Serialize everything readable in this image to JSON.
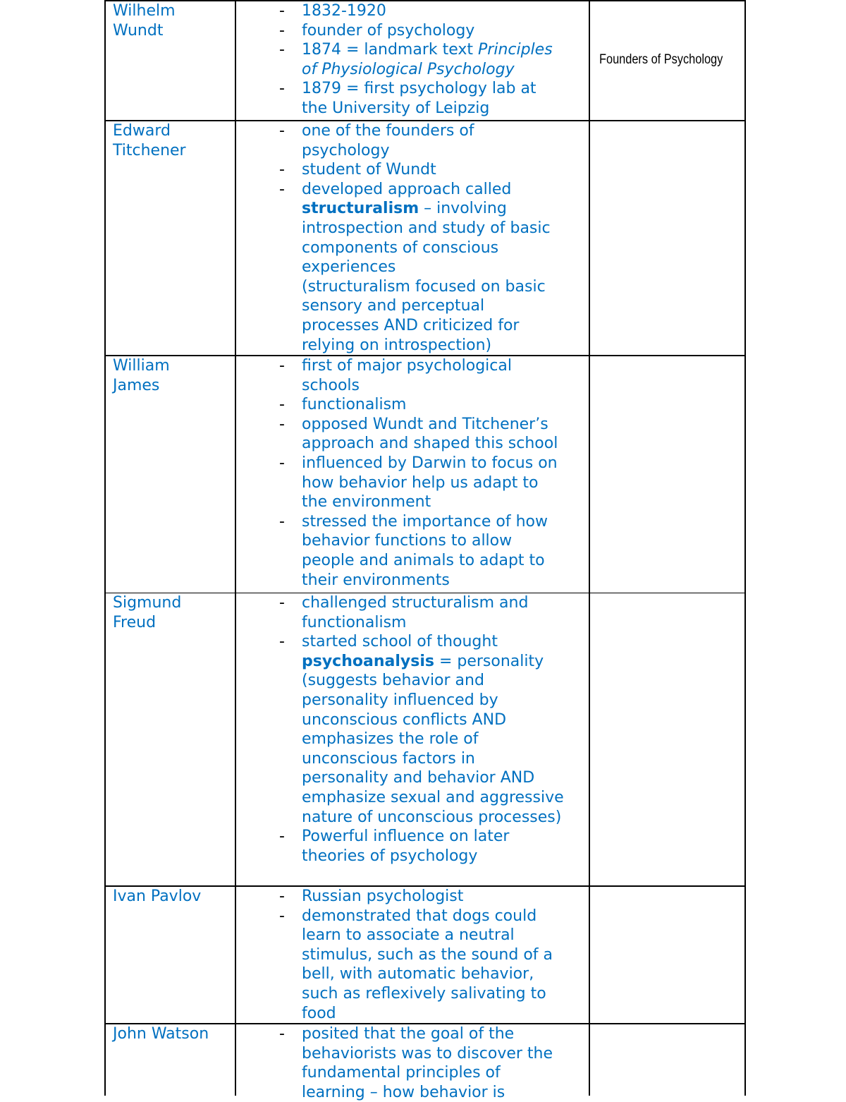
{
  "document": {
    "title": "Founders of Psychology",
    "text_color": "#0070c0",
    "rows": [
      {
        "name": [
          "Wilhelm",
          "Wundt"
        ],
        "items": [
          [
            [
              {
                "t": "1832-1920"
              }
            ]
          ],
          [
            [
              {
                "t": "founder of psychology"
              }
            ]
          ],
          [
            [
              {
                "t": "1874 = landmark text "
              },
              {
                "t": "Principles",
                "i": true
              }
            ],
            [
              {
                "t": "of Physiological Psychology",
                "i": true
              }
            ]
          ],
          [
            [
              {
                "t": "1879 = first psychology lab at"
              }
            ],
            [
              {
                "t": "the University of Leipzig"
              }
            ]
          ]
        ]
      },
      {
        "name": [
          "Edward",
          "Titchener"
        ],
        "items": [
          [
            [
              {
                "t": "one of the founders of"
              }
            ],
            [
              {
                "t": "psychology"
              }
            ]
          ],
          [
            [
              {
                "t": "student of Wundt"
              }
            ]
          ],
          [
            [
              {
                "t": "developed approach called"
              }
            ],
            [
              {
                "t": "structuralism",
                "b": true
              },
              {
                "t": " – involving"
              }
            ],
            [
              {
                "t": "introspection and study of basic"
              }
            ],
            [
              {
                "t": "components of conscious"
              }
            ],
            [
              {
                "t": "experiences"
              }
            ],
            [
              {
                "t": "(structuralism focused on basic"
              }
            ],
            [
              {
                "t": "sensory and perceptual"
              }
            ],
            [
              {
                "t": "processes AND criticized for"
              }
            ],
            [
              {
                "t": "relying on introspection)"
              }
            ]
          ]
        ]
      },
      {
        "name": [
          "William",
          "James"
        ],
        "items": [
          [
            [
              {
                "t": "first of major psychological"
              }
            ],
            [
              {
                "t": "schools"
              }
            ]
          ],
          [
            [
              {
                "t": "functionalism"
              }
            ]
          ],
          [
            [
              {
                "t": "opposed Wundt and Titchener’s"
              }
            ],
            [
              {
                "t": "approach and shaped this school"
              }
            ]
          ],
          [
            [
              {
                "t": "influenced by Darwin to focus on"
              }
            ],
            [
              {
                "t": "how behavior help us adapt to"
              }
            ],
            [
              {
                "t": "the environment"
              }
            ]
          ],
          [
            [
              {
                "t": "stressed the importance of how"
              }
            ],
            [
              {
                "t": "behavior functions to allow"
              }
            ],
            [
              {
                "t": "people and animals to adapt to"
              }
            ],
            [
              {
                "t": "their environments"
              }
            ]
          ]
        ]
      },
      {
        "name": [
          "Sigmund",
          "Freud"
        ],
        "items": [
          [
            [
              {
                "t": "challenged structuralism and"
              }
            ],
            [
              {
                "t": "functionalism"
              }
            ]
          ],
          [
            [
              {
                "t": "started school of thought"
              }
            ],
            [
              {
                "t": "psychoanalysis",
                "b": true
              },
              {
                "t": " = personality"
              }
            ],
            [
              {
                "t": "(suggests behavior and"
              }
            ],
            [
              {
                "t": "personality influenced by"
              }
            ],
            [
              {
                "t": "unconscious conflicts AND"
              }
            ],
            [
              {
                "t": "emphasizes the role of"
              }
            ],
            [
              {
                "t": "unconscious factors in"
              }
            ],
            [
              {
                "t": "personality and behavior AND"
              }
            ],
            [
              {
                "t": "emphasize sexual and aggressive"
              }
            ],
            [
              {
                "t": "nature of unconscious processes)"
              }
            ]
          ],
          [
            [
              {
                "t": "Powerful influence on later"
              }
            ],
            [
              {
                "t": "theories of psychology"
              }
            ]
          ]
        ]
      },
      {
        "name": [
          "Ivan Pavlov"
        ],
        "items": [
          [
            [
              {
                "t": "Russian psychologist"
              }
            ]
          ],
          [
            [
              {
                "t": "demonstrated that dogs could"
              }
            ],
            [
              {
                "t": "learn to associate a neutral"
              }
            ],
            [
              {
                "t": "stimulus, such as the sound of a"
              }
            ],
            [
              {
                "t": "bell, with automatic behavior,"
              }
            ],
            [
              {
                "t": "such as reflexively salivating to"
              }
            ],
            [
              {
                "t": "food"
              }
            ]
          ]
        ]
      },
      {
        "name": [
          "John Watson"
        ],
        "items": [
          [
            [
              {
                "t": "posited that the goal of the"
              }
            ],
            [
              {
                "t": "behaviorists was to discover the"
              }
            ],
            [
              {
                "t": "fundamental principles of"
              }
            ],
            [
              {
                "t": "learning – how behavior is"
              }
            ]
          ]
        ]
      }
    ],
    "dash": "-"
  }
}
